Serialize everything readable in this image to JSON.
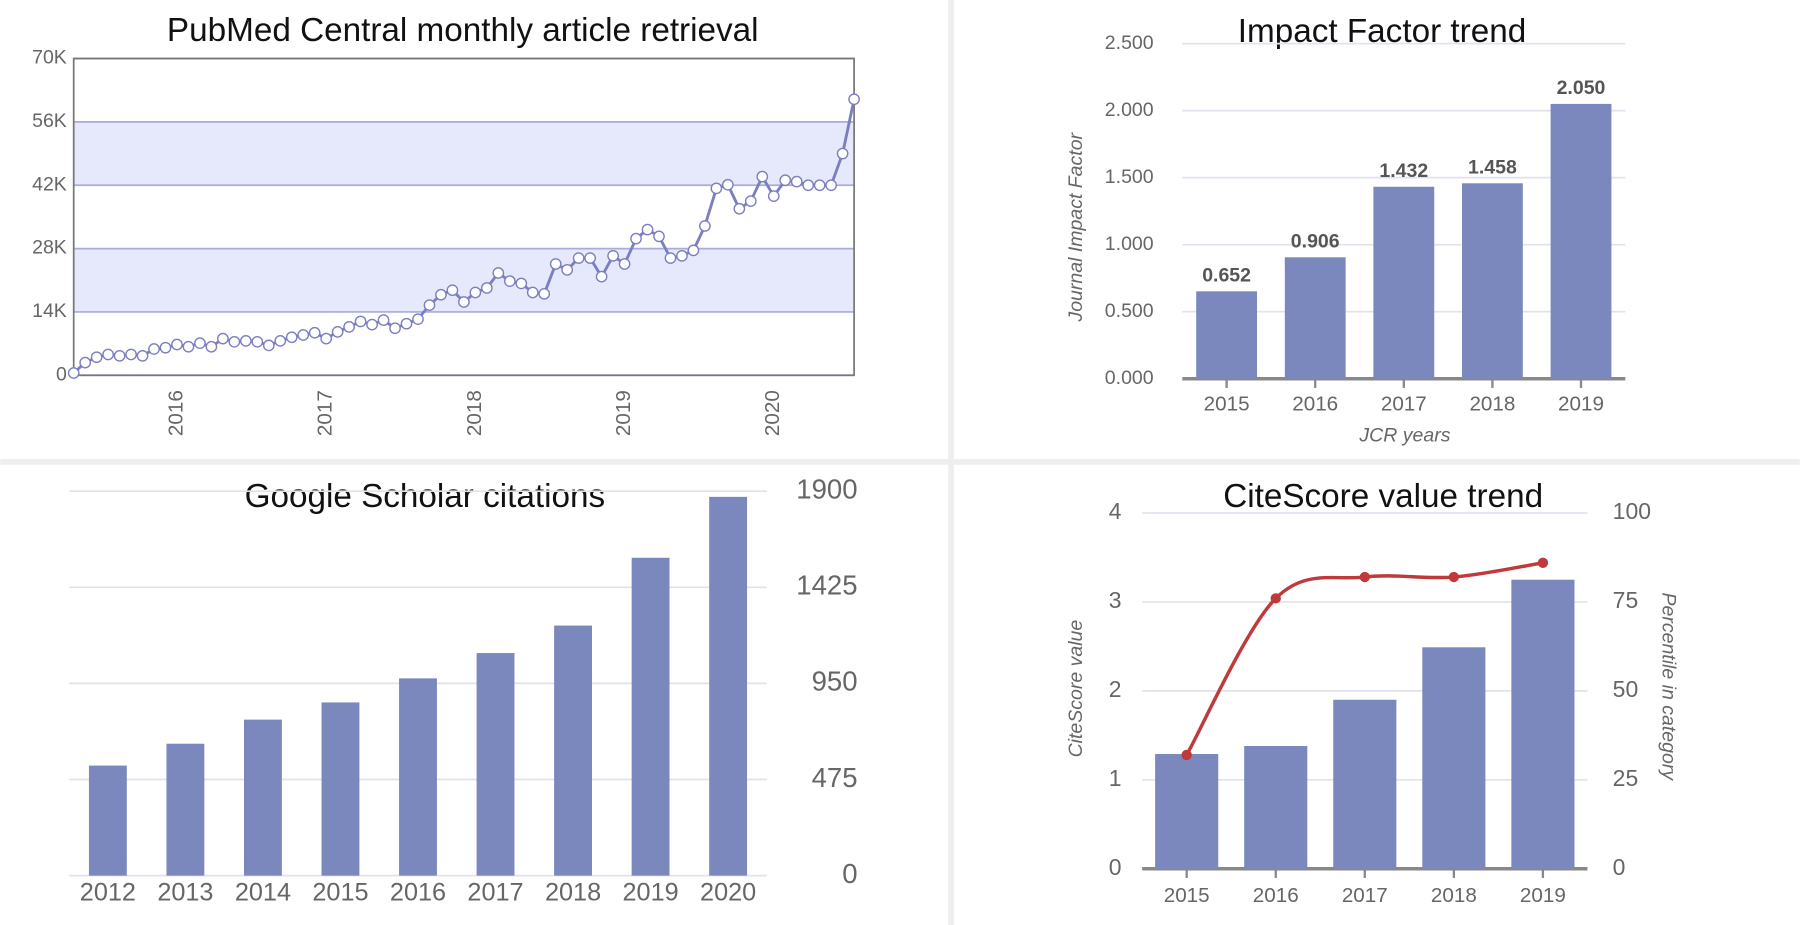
{
  "chart_data": [
    {
      "type": "line",
      "title": "PubMed Central monthly article retrieval",
      "categories": [
        null,
        null,
        null,
        null,
        null,
        null,
        null,
        null,
        null,
        "2016",
        null,
        null,
        null,
        null,
        null,
        null,
        null,
        null,
        null,
        null,
        null,
        null,
        "2017",
        null,
        null,
        null,
        null,
        null,
        null,
        null,
        null,
        null,
        null,
        null,
        null,
        "2018",
        null,
        null,
        null,
        null,
        null,
        null,
        null,
        null,
        null,
        null,
        null,
        null,
        "2019",
        null,
        null,
        null,
        null,
        null,
        null,
        null,
        null,
        null,
        null,
        null,
        null,
        "2020",
        null,
        null,
        null,
        null,
        null,
        null,
        null
      ],
      "values": [
        500,
        2800,
        4000,
        4600,
        4300,
        4600,
        4300,
        5800,
        6100,
        6800,
        6300,
        7100,
        6300,
        8100,
        7400,
        7600,
        7400,
        6600,
        7600,
        8400,
        8900,
        9400,
        8100,
        9600,
        10700,
        11900,
        11200,
        12200,
        10400,
        11400,
        12400,
        15500,
        17800,
        18800,
        16200,
        18300,
        19300,
        22600,
        20800,
        20300,
        18300,
        18000,
        24600,
        23300,
        25900,
        25900,
        21800,
        26400,
        24600,
        30200,
        32200,
        30700,
        25900,
        26400,
        27600,
        33000,
        41300,
        42100,
        36800,
        38500,
        43900,
        39600,
        43100,
        42800,
        42000,
        42000,
        42000,
        49000,
        61000
      ],
      "color": "#7b7fbf",
      "bands": [
        [
          14000,
          28000
        ],
        [
          42000,
          56000
        ]
      ],
      "band_color": "#e6e8fc",
      "ylim": [
        0,
        70000
      ],
      "yticks": [
        0,
        {
          "value": 14000,
          "label": "14K"
        },
        {
          "value": 28000,
          "label": "28K"
        },
        {
          "value": 42000,
          "label": "42K"
        },
        {
          "value": 56000,
          "label": "56K"
        },
        {
          "value": 70000,
          "label": "70K"
        }
      ]
    },
    {
      "type": "bar",
      "title": "Impact Factor trend",
      "x_label": "JCR years",
      "y_label": "Journal Impact Factor",
      "categories": [
        "2015",
        "2016",
        "2017",
        "2018",
        "2019"
      ],
      "values": [
        0.652,
        0.906,
        1.432,
        1.458,
        2.05
      ],
      "value_labels": [
        "0.652",
        "0.906",
        "1.432",
        "1.458",
        "2.050"
      ],
      "color": "#7b88bd",
      "ylim": [
        0,
        2.5
      ],
      "yticks": [
        {
          "value": 0,
          "label": "0.000"
        },
        {
          "value": 0.5,
          "label": "0.500"
        },
        {
          "value": 1,
          "label": "1.000"
        },
        {
          "value": 1.5,
          "label": "1.500"
        },
        {
          "value": 2,
          "label": "2.000"
        },
        {
          "value": 2.5,
          "label": "2.500"
        }
      ]
    },
    {
      "type": "bar",
      "title": "Google Scholar citations",
      "categories": [
        "2012",
        "2013",
        "2014",
        "2015",
        "2016",
        "2017",
        "2018",
        "2019",
        "2020"
      ],
      "values": [
        544,
        652,
        771,
        856,
        975,
        1100,
        1236,
        1571,
        1872
      ],
      "color": "#7b88bd",
      "ylim": [
        0,
        1900
      ],
      "yticks": [
        0,
        475,
        950,
        1425,
        1900
      ],
      "y_axis_side": "right"
    },
    {
      "type": "bar",
      "title": "CiteScore value trend",
      "y_label": "CiteScore value",
      "y2_label": "Percentile in category",
      "categories": [
        "2015",
        "2016",
        "2017",
        "2018",
        "2019"
      ],
      "series": [
        {
          "name": "CiteScore value",
          "color": "#7b88bd",
          "type": "bar",
          "values": [
            1.29,
            1.38,
            1.9,
            2.49,
            3.25
          ]
        },
        {
          "name": "Percentile in category",
          "color": "#c0393b",
          "type": "line",
          "axis": "y2",
          "values": [
            32,
            76,
            82,
            82,
            86
          ]
        }
      ],
      "ylim": [
        0,
        4
      ],
      "yticks": [
        0,
        1,
        2,
        3,
        4
      ],
      "y2lim": [
        0,
        100
      ],
      "y2ticks": [
        0,
        25,
        50,
        75,
        100
      ]
    }
  ]
}
